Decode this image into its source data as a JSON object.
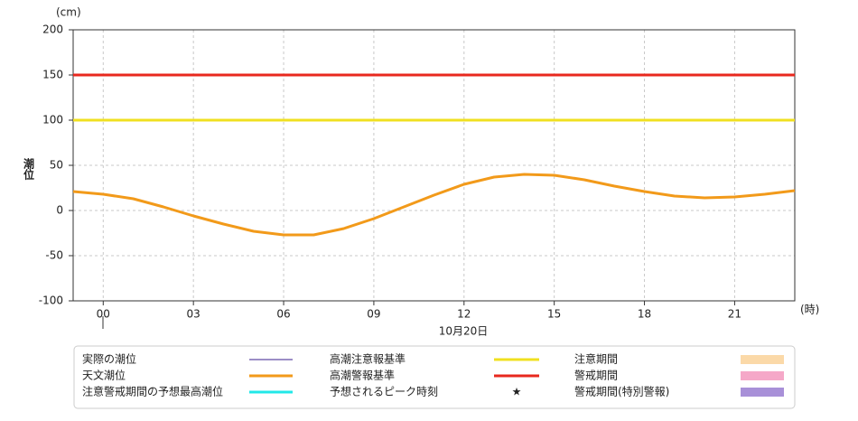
{
  "chart_data": {
    "type": "line",
    "y_label": "潮位",
    "y_unit": "(cm)",
    "x_unit": "(時)",
    "x_label": "10月20日",
    "x": [
      -1,
      0,
      1,
      2,
      3,
      4,
      5,
      6,
      7,
      8,
      9,
      10,
      11,
      12,
      13,
      14,
      15,
      16,
      17,
      18,
      19,
      20,
      21,
      22,
      23
    ],
    "series": [
      {
        "name": "天文潮位",
        "color": "#f29a1a",
        "values": [
          21,
          18,
          13,
          4,
          -6,
          -15,
          -23,
          -27,
          -27,
          -20,
          -9,
          4,
          17,
          29,
          37,
          40,
          39,
          34,
          27,
          21,
          16,
          14,
          15,
          18,
          22
        ]
      }
    ],
    "reference_lines": [
      {
        "name": "高潮注意報基準",
        "value": 100,
        "color": "#f0e020"
      },
      {
        "name": "高潮警報基準",
        "value": 150,
        "color": "#e8281e"
      }
    ],
    "legend_items": [
      {
        "name": "実際の潮位",
        "color": "#3a1e8c",
        "symbol": "line"
      },
      {
        "name": "注意警戒期間の予想最高潮位",
        "color": "#22e8e8",
        "symbol": "line"
      },
      {
        "name": "予想されるピーク時刻",
        "color": "#1a1ad0",
        "symbol": "star"
      },
      {
        "name": "注意期間",
        "color": "#fbd9a8",
        "symbol": "rect"
      },
      {
        "name": "警戒期間",
        "color": "#f5a8c8",
        "symbol": "rect"
      },
      {
        "name": "警戒期間(特別警報)",
        "color": "#a890d8",
        "symbol": "rect"
      }
    ],
    "xlim": [
      -1,
      23
    ],
    "xticks": [
      {
        "value": 0,
        "label": "00"
      },
      {
        "value": 3,
        "label": "03"
      },
      {
        "value": 6,
        "label": "06"
      },
      {
        "value": 9,
        "label": "09"
      },
      12,
      15,
      18,
      21
    ],
    "ylim": [
      -100,
      200
    ],
    "yticks": [
      -100,
      -50,
      0,
      50,
      100,
      150,
      200
    ],
    "grid": true
  }
}
